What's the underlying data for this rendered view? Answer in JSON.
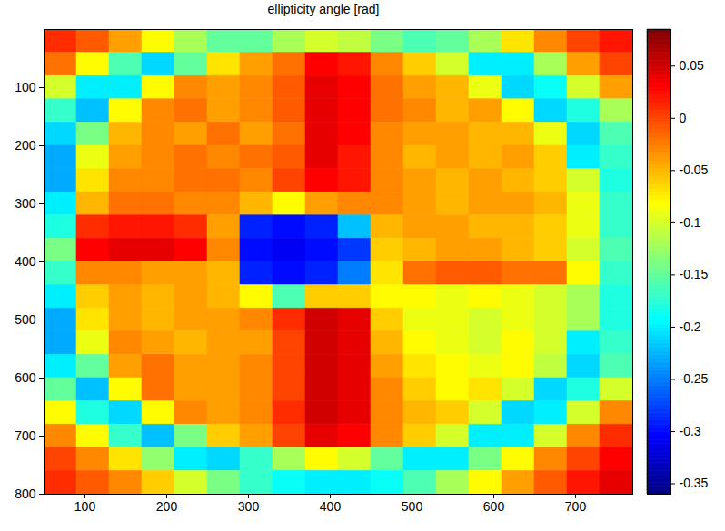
{
  "chart_data": {
    "type": "heatmap",
    "title": "ellipticity angle [rad]",
    "x": [
      70,
      110,
      150,
      190,
      230,
      270,
      310,
      350,
      390,
      430,
      470,
      510,
      550,
      590,
      630,
      670,
      710,
      750
    ],
    "y": [
      20,
      60,
      100,
      140,
      180,
      220,
      260,
      300,
      340,
      380,
      420,
      460,
      500,
      540,
      580,
      620,
      660,
      700,
      740,
      780
    ],
    "values": [
      [
        0.01,
        -0.01,
        -0.04,
        -0.08,
        -0.12,
        -0.15,
        -0.15,
        -0.12,
        -0.1,
        -0.11,
        -0.14,
        -0.16,
        -0.15,
        -0.12,
        -0.07,
        -0.03,
        0.0,
        0.02
      ],
      [
        -0.02,
        -0.08,
        -0.16,
        -0.21,
        -0.15,
        -0.07,
        -0.04,
        -0.02,
        0.03,
        0.02,
        -0.03,
        -0.06,
        -0.1,
        -0.2,
        -0.2,
        -0.12,
        -0.04,
        0.0
      ],
      [
        -0.1,
        -0.2,
        -0.2,
        -0.08,
        -0.03,
        -0.04,
        -0.03,
        -0.01,
        0.04,
        0.03,
        -0.02,
        -0.04,
        -0.05,
        -0.09,
        -0.21,
        -0.19,
        -0.1,
        -0.04
      ],
      [
        -0.17,
        -0.22,
        -0.08,
        -0.03,
        -0.02,
        -0.04,
        -0.03,
        -0.01,
        0.04,
        0.03,
        -0.02,
        -0.03,
        -0.05,
        -0.04,
        -0.08,
        -0.21,
        -0.18,
        -0.12
      ],
      [
        -0.21,
        -0.14,
        -0.05,
        -0.03,
        -0.04,
        -0.02,
        -0.04,
        -0.02,
        0.04,
        0.03,
        -0.03,
        -0.04,
        -0.04,
        -0.05,
        -0.05,
        -0.09,
        -0.21,
        -0.16
      ],
      [
        -0.23,
        -0.09,
        -0.04,
        -0.03,
        -0.02,
        -0.03,
        -0.02,
        -0.01,
        0.04,
        0.02,
        -0.03,
        -0.05,
        -0.04,
        -0.05,
        -0.04,
        -0.06,
        -0.2,
        -0.17
      ],
      [
        -0.23,
        -0.07,
        -0.03,
        -0.03,
        -0.02,
        -0.02,
        -0.03,
        0.0,
        0.03,
        0.02,
        -0.03,
        -0.04,
        -0.05,
        -0.04,
        -0.05,
        -0.06,
        -0.1,
        -0.18
      ],
      [
        -0.2,
        -0.05,
        -0.02,
        -0.02,
        -0.03,
        -0.03,
        -0.05,
        -0.08,
        -0.04,
        -0.03,
        -0.03,
        -0.04,
        -0.05,
        -0.04,
        -0.04,
        -0.05,
        -0.09,
        -0.17
      ],
      [
        -0.18,
        0.01,
        0.02,
        0.02,
        0.01,
        -0.04,
        -0.29,
        -0.3,
        -0.29,
        -0.22,
        -0.05,
        -0.04,
        -0.04,
        -0.05,
        -0.05,
        -0.06,
        -0.09,
        -0.17
      ],
      [
        -0.14,
        0.03,
        0.04,
        0.04,
        0.03,
        -0.03,
        -0.3,
        -0.31,
        -0.3,
        -0.28,
        -0.06,
        -0.05,
        -0.04,
        -0.04,
        -0.05,
        -0.06,
        -0.1,
        -0.16
      ],
      [
        -0.17,
        -0.03,
        -0.03,
        -0.04,
        -0.04,
        -0.05,
        -0.29,
        -0.3,
        -0.29,
        -0.25,
        -0.07,
        -0.02,
        -0.01,
        -0.01,
        -0.02,
        -0.02,
        -0.08,
        -0.17
      ],
      [
        -0.2,
        -0.06,
        -0.04,
        -0.05,
        -0.04,
        -0.05,
        -0.08,
        -0.16,
        -0.06,
        -0.06,
        -0.08,
        -0.08,
        -0.09,
        -0.08,
        -0.09,
        -0.1,
        -0.12,
        -0.18
      ],
      [
        -0.23,
        -0.07,
        -0.04,
        -0.05,
        -0.04,
        -0.04,
        -0.03,
        0.01,
        0.05,
        0.04,
        -0.06,
        -0.09,
        -0.09,
        -0.1,
        -0.09,
        -0.1,
        -0.12,
        -0.18
      ],
      [
        -0.23,
        -0.09,
        -0.03,
        -0.04,
        -0.05,
        -0.04,
        -0.04,
        0.0,
        0.05,
        0.04,
        -0.05,
        -0.08,
        -0.09,
        -0.1,
        -0.08,
        -0.1,
        -0.2,
        -0.17
      ],
      [
        -0.2,
        -0.15,
        -0.04,
        -0.02,
        -0.04,
        -0.04,
        -0.03,
        0.0,
        0.05,
        0.04,
        -0.04,
        -0.07,
        -0.08,
        -0.09,
        -0.08,
        -0.11,
        -0.21,
        -0.16
      ],
      [
        -0.15,
        -0.22,
        -0.08,
        -0.02,
        -0.04,
        -0.04,
        -0.03,
        0.0,
        0.05,
        0.04,
        -0.03,
        -0.06,
        -0.08,
        -0.07,
        -0.1,
        -0.21,
        -0.18,
        -0.1
      ],
      [
        -0.08,
        -0.18,
        -0.21,
        -0.08,
        -0.03,
        -0.04,
        -0.03,
        0.01,
        0.05,
        0.04,
        -0.03,
        -0.05,
        -0.06,
        -0.1,
        -0.21,
        -0.2,
        -0.1,
        -0.03
      ],
      [
        -0.03,
        -0.08,
        -0.17,
        -0.22,
        -0.14,
        -0.06,
        -0.04,
        0.0,
        0.04,
        0.03,
        -0.03,
        -0.06,
        -0.1,
        -0.2,
        -0.2,
        -0.1,
        -0.03,
        0.01
      ],
      [
        0.0,
        -0.03,
        -0.07,
        -0.13,
        -0.2,
        -0.21,
        -0.17,
        -0.12,
        -0.08,
        -0.1,
        -0.15,
        -0.2,
        -0.2,
        -0.14,
        -0.08,
        -0.03,
        0.0,
        0.03
      ],
      [
        0.01,
        -0.01,
        -0.03,
        -0.06,
        -0.1,
        -0.14,
        -0.17,
        -0.19,
        -0.2,
        -0.2,
        -0.19,
        -0.16,
        -0.12,
        -0.08,
        -0.04,
        -0.01,
        0.02,
        0.04
      ]
    ],
    "xlim": [
      50,
      770
    ],
    "ylim": [
      800,
      0
    ],
    "xticks": [
      100,
      200,
      300,
      400,
      500,
      600,
      700
    ],
    "yticks": [
      100,
      200,
      300,
      400,
      500,
      600,
      700,
      800
    ],
    "colorbar_range": [
      -0.36,
      0.085
    ],
    "colorbar_ticks": [
      0.05,
      0,
      -0.05,
      -0.1,
      -0.15,
      -0.2,
      -0.25,
      -0.3,
      -0.35
    ]
  }
}
